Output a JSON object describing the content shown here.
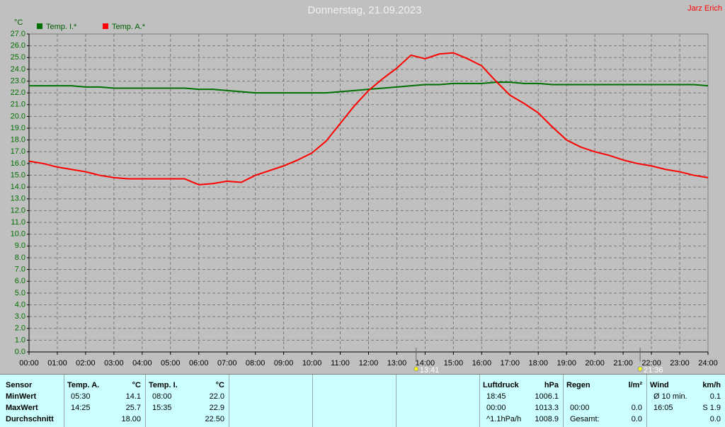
{
  "chart_data": {
    "type": "line",
    "title": "Donnerstag, 21.09.2023",
    "author": "Jarz Erich",
    "y_label": "°C",
    "x": [
      0,
      0.5,
      1,
      1.5,
      2,
      2.5,
      3,
      3.5,
      4,
      4.5,
      5,
      5.5,
      6,
      6.5,
      7,
      7.5,
      8,
      8.5,
      9,
      9.5,
      10,
      10.5,
      11,
      11.5,
      12,
      12.5,
      13,
      13.5,
      14,
      14.5,
      15,
      15.5,
      16,
      16.5,
      17,
      17.5,
      18,
      18.5,
      19,
      19.5,
      20,
      20.5,
      21,
      21.5,
      22,
      22.5,
      23,
      23.5,
      24
    ],
    "series": [
      {
        "name": "Temp. I.*",
        "color": "#007000",
        "values": [
          22.6,
          22.6,
          22.6,
          22.6,
          22.5,
          22.5,
          22.4,
          22.4,
          22.4,
          22.4,
          22.4,
          22.4,
          22.3,
          22.3,
          22.2,
          22.1,
          22.0,
          22.0,
          22.0,
          22.0,
          22.0,
          22.0,
          22.1,
          22.2,
          22.3,
          22.4,
          22.5,
          22.6,
          22.7,
          22.7,
          22.8,
          22.8,
          22.8,
          22.9,
          22.9,
          22.8,
          22.8,
          22.7,
          22.7,
          22.7,
          22.7,
          22.7,
          22.7,
          22.7,
          22.7,
          22.7,
          22.7,
          22.7,
          22.6
        ]
      },
      {
        "name": "Temp. A.*",
        "color": "#ff0000",
        "values": [
          16.2,
          16.0,
          15.7,
          15.5,
          15.3,
          15.0,
          14.8,
          14.7,
          14.7,
          14.7,
          14.7,
          14.7,
          14.2,
          14.3,
          14.5,
          14.4,
          15.0,
          15.4,
          15.8,
          16.3,
          16.9,
          17.9,
          19.4,
          20.9,
          22.2,
          23.2,
          24.1,
          25.2,
          24.9,
          25.3,
          25.4,
          24.9,
          24.3,
          23.0,
          21.8,
          21.1,
          20.3,
          19.1,
          18.0,
          17.4,
          17.0,
          16.7,
          16.3,
          16.0,
          15.8,
          15.5,
          15.3,
          15.0,
          14.8
        ]
      }
    ],
    "xlim": [
      0,
      24
    ],
    "xticks": [
      {
        "value": 0,
        "label": "00:00"
      },
      {
        "value": 1,
        "label": "01:00"
      },
      {
        "value": 2,
        "label": "02:00"
      },
      {
        "value": 3,
        "label": "03:00"
      },
      {
        "value": 4,
        "label": "04:00"
      },
      {
        "value": 5,
        "label": "05:00"
      },
      {
        "value": 6,
        "label": "06:00"
      },
      {
        "value": 7,
        "label": "07:00"
      },
      {
        "value": 8,
        "label": "08:00"
      },
      {
        "value": 9,
        "label": "09:00"
      },
      {
        "value": 10,
        "label": "10:00"
      },
      {
        "value": 11,
        "label": "11:00"
      },
      {
        "value": 12,
        "label": "12:00"
      },
      {
        "value": 13,
        "label": "13:00"
      },
      {
        "value": 14,
        "label": "14:00"
      },
      {
        "value": 15,
        "label": "15:00"
      },
      {
        "value": 16,
        "label": "16:00"
      },
      {
        "value": 17,
        "label": "17:00"
      },
      {
        "value": 18,
        "label": "18:00"
      },
      {
        "value": 19,
        "label": "19:00"
      },
      {
        "value": 20,
        "label": "20:00"
      },
      {
        "value": 21,
        "label": "21:00"
      },
      {
        "value": 22,
        "label": "22:00"
      },
      {
        "value": 23,
        "label": "23:00"
      },
      {
        "value": 24,
        "label": "24:00"
      }
    ],
    "ylim": [
      0,
      27
    ],
    "yticks": [
      {
        "value": 0,
        "label": "0.0"
      },
      {
        "value": 1,
        "label": "1.0"
      },
      {
        "value": 2,
        "label": "2.0"
      },
      {
        "value": 3,
        "label": "3.0"
      },
      {
        "value": 4,
        "label": "4.0"
      },
      {
        "value": 5,
        "label": "5.0"
      },
      {
        "value": 6,
        "label": "6.0"
      },
      {
        "value": 7,
        "label": "7.0"
      },
      {
        "value": 8,
        "label": "8.0"
      },
      {
        "value": 9,
        "label": "9.0"
      },
      {
        "value": 10,
        "label": "10.0"
      },
      {
        "value": 11,
        "label": "11.0"
      },
      {
        "value": 12,
        "label": "12.0"
      },
      {
        "value": 13,
        "label": "13.0"
      },
      {
        "value": 14,
        "label": "14.0"
      },
      {
        "value": 15,
        "label": "15.0"
      },
      {
        "value": 16,
        "label": "16.0"
      },
      {
        "value": 17,
        "label": "17.0"
      },
      {
        "value": 18,
        "label": "18.0"
      },
      {
        "value": 19,
        "label": "19.0"
      },
      {
        "value": 20,
        "label": "20.0"
      },
      {
        "value": 21,
        "label": "21.0"
      },
      {
        "value": 22,
        "label": "22.0"
      },
      {
        "value": 23,
        "label": "23.0"
      },
      {
        "value": 24,
        "label": "24.0"
      },
      {
        "value": 25,
        "label": "25.0"
      },
      {
        "value": 26,
        "label": "26.0"
      },
      {
        "value": 27,
        "label": "27.0"
      }
    ],
    "grid": true,
    "annotations": [
      {
        "text": "13:41",
        "x": 13.683
      },
      {
        "text": "21:36",
        "x": 21.6
      }
    ]
  },
  "table": {
    "panels": [
      {
        "labels": [
          "Sensor",
          "MinWert",
          "MaxWert",
          "Durchschnitt"
        ]
      },
      {
        "header": [
          "Temp. A.",
          "°C"
        ],
        "rows": [
          {
            "time": "05:30",
            "value": "14.1"
          },
          {
            "time": "14:25",
            "value": "25.7"
          },
          {
            "value": "18.00"
          }
        ]
      },
      {
        "header": [
          "Temp. I.",
          "°C"
        ],
        "rows": [
          {
            "time": "08:00",
            "value": "22.0"
          },
          {
            "time": "15:35",
            "value": "22.9"
          },
          {
            "value": "22.50"
          }
        ]
      },
      {},
      {},
      {},
      {
        "header": [
          "Luftdruck",
          "hPa"
        ],
        "rows": [
          {
            "time": "18:45",
            "value": "1006.1"
          },
          {
            "time": "00:00",
            "value": "1013.3"
          },
          {
            "time": "^1.1hPa/h",
            "value": "1008.9"
          }
        ]
      },
      {
        "header": [
          "Regen",
          "l/m²"
        ],
        "rows": [
          {},
          {
            "time": "00:00",
            "value": "0.0"
          },
          {
            "time": "Gesamt:",
            "value": "0.0"
          }
        ]
      },
      {
        "header": [
          "Wind",
          "km/h"
        ],
        "rows": [
          {
            "time": "Ø 10 min.",
            "value": "0.1"
          },
          {
            "time": "16:05",
            "value": "S 1.9"
          },
          {
            "value": "0.0"
          }
        ]
      }
    ]
  }
}
